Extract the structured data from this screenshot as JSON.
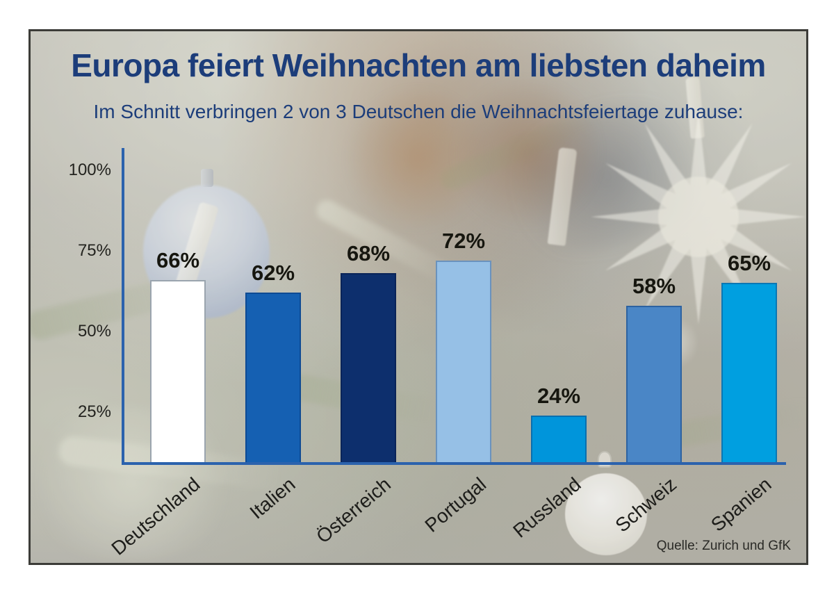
{
  "chart_data": {
    "type": "bar",
    "title": "Europa feiert Weihnachten am liebsten daheim",
    "subtitle": "Im Schnitt verbringen 2 von 3 Deutschen die Weihnachtsfeiertage zuhause:",
    "source": "Quelle: Zurich und GfK",
    "categories": [
      "Deutschland",
      "Italien",
      "Österreich",
      "Portugal",
      "Russland",
      "Schweiz",
      "Spanien"
    ],
    "values": [
      66,
      62,
      68,
      72,
      24,
      58,
      65
    ],
    "value_suffix": "%",
    "ytick_values": [
      100,
      75,
      50,
      25
    ],
    "ytick_labels": [
      "100%",
      "75%",
      "50%",
      "25%"
    ],
    "ylim": [
      0,
      100
    ],
    "grid": false,
    "legend_position": "none",
    "bar_colors": [
      "#ffffff",
      "#1560b2",
      "#0d2f6d",
      "#96c0e6",
      "#0095db",
      "#4a86c6",
      "#009fe0"
    ],
    "bar_border_colors": [
      "#9aa4ae",
      "#0d4a94",
      "#0a2458",
      "#6a92bd",
      "#0a6fae",
      "#2d62a0",
      "#0a77b4"
    ],
    "axis_color": "#2b62ad",
    "title_color": "#1c3d7a",
    "subtitle_color": "#1c3d7a"
  }
}
